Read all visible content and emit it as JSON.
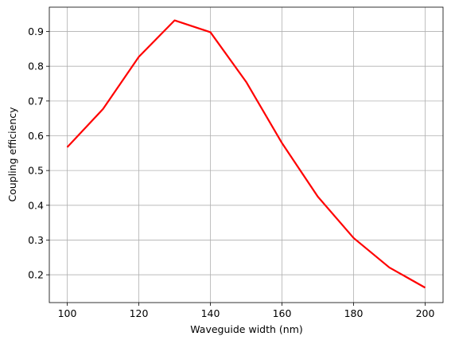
{
  "chart_data": {
    "type": "line",
    "x_label": "Waveguide width (nm)",
    "y_label": "Coupling efficiency",
    "x": [
      100,
      110,
      120,
      130,
      140,
      150,
      160,
      170,
      180,
      190,
      200
    ],
    "series": [
      {
        "color": "#ff0000",
        "values": [
          0.567,
          0.677,
          0.827,
          0.932,
          0.898,
          0.755,
          0.579,
          0.425,
          0.306,
          0.221,
          0.163
        ]
      }
    ],
    "xlim": [
      95,
      205
    ],
    "xticks": [
      100,
      120,
      140,
      160,
      180,
      200
    ],
    "ylim": [
      0.12,
      0.97
    ],
    "yticks": [
      0.2,
      0.3,
      0.4,
      0.5,
      0.6,
      0.7,
      0.8,
      0.9
    ],
    "grid": true
  }
}
